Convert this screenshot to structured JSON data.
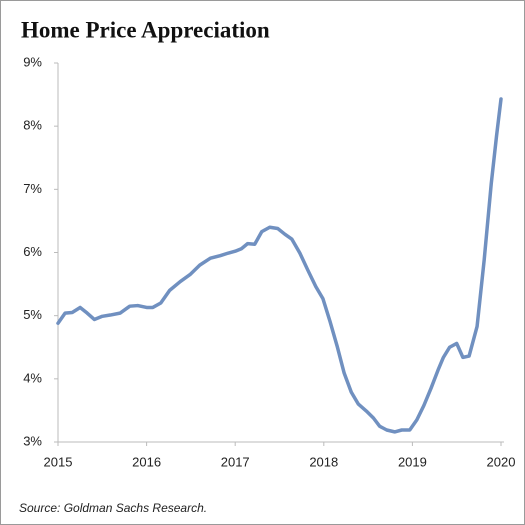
{
  "chart_data": {
    "type": "line",
    "title": "Home Price Appreciation",
    "source": "Source: Goldman Sachs Research.",
    "xlim": [
      2015,
      2020
    ],
    "xticks": [
      2015,
      2016,
      2017,
      2018,
      2019,
      2020
    ],
    "ylim": [
      3,
      9
    ],
    "yticks": [
      {
        "value": 3,
        "label": "3%"
      },
      {
        "value": 4,
        "label": "4%"
      },
      {
        "value": 5,
        "label": "5%"
      },
      {
        "value": 6,
        "label": "6%"
      },
      {
        "value": 7,
        "label": "7%"
      },
      {
        "value": 8,
        "label": "8%"
      },
      {
        "value": 9,
        "label": "9%"
      }
    ],
    "grid": false,
    "series": [
      {
        "color": "#7090c0",
        "x": [
          2015.0,
          2015.08,
          2015.16,
          2015.25,
          2015.33,
          2015.41,
          2015.5,
          2015.59,
          2015.7,
          2015.81,
          2015.9,
          2016.0,
          2016.07,
          2016.16,
          2016.26,
          2016.38,
          2016.49,
          2016.6,
          2016.72,
          2016.83,
          2016.92,
          2017.0,
          2017.07,
          2017.14,
          2017.22,
          2017.3,
          2017.39,
          2017.48,
          2017.56,
          2017.64,
          2017.73,
          2017.82,
          2017.91,
          2017.99,
          2018.07,
          2018.15,
          2018.23,
          2018.31,
          2018.39,
          2018.48,
          2018.56,
          2018.63,
          2018.71,
          2018.8,
          2018.88,
          2018.97,
          2019.05,
          2019.13,
          2019.21,
          2019.29,
          2019.35,
          2019.42,
          2019.5,
          2019.57,
          2019.64,
          2019.73,
          2019.81,
          2019.89,
          2019.95,
          2020.0
        ],
        "values": [
          4.88,
          5.04,
          5.05,
          5.13,
          5.04,
          4.94,
          4.99,
          5.01,
          5.04,
          5.15,
          5.16,
          5.13,
          5.13,
          5.2,
          5.4,
          5.54,
          5.65,
          5.8,
          5.91,
          5.95,
          5.99,
          6.02,
          6.06,
          6.14,
          6.13,
          6.33,
          6.4,
          6.38,
          6.29,
          6.21,
          5.99,
          5.72,
          5.46,
          5.27,
          4.91,
          4.52,
          4.09,
          3.79,
          3.6,
          3.49,
          3.38,
          3.25,
          3.19,
          3.16,
          3.19,
          3.19,
          3.35,
          3.58,
          3.85,
          4.14,
          4.34,
          4.5,
          4.56,
          4.34,
          4.36,
          4.83,
          5.88,
          7.09,
          7.85,
          8.43
        ]
      }
    ]
  }
}
